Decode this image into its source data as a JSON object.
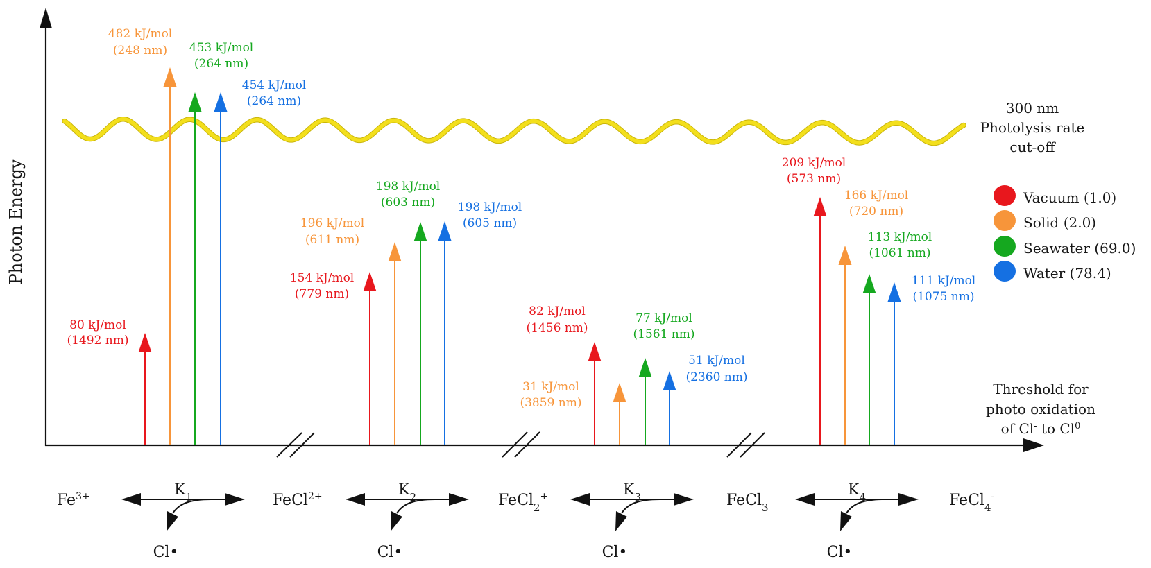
{
  "figure": {
    "y_axis_label": "Photon Energy",
    "x_axis_label": {
      "line1": "Threshold for",
      "line2": "photo oxidation",
      "line3": {
        "a": "of Cl",
        "a_sup": "-",
        "b": " to Cl",
        "b_sup": "0"
      }
    },
    "cutoff": {
      "line1": "300 nm",
      "line2": "Photolysis rate",
      "line3": "cut-off",
      "color": "#f3df1c",
      "outline_color": "#c9b50a"
    },
    "axis_color": "#111111"
  },
  "reactions": {
    "species": [
      {
        "base": "Fe",
        "sub": "",
        "sup": "3+"
      },
      {
        "base": "FeCl",
        "sub": "",
        "sup": "2+"
      },
      {
        "base": "FeCl",
        "sub": "2",
        "sup": "+"
      },
      {
        "base": "FeCl",
        "sub": "3",
        "sup": ""
      },
      {
        "base": "FeCl",
        "sub": "4",
        "sup": "-"
      }
    ],
    "constants": [
      {
        "base": "K",
        "sub": "1"
      },
      {
        "base": "K",
        "sub": "2"
      },
      {
        "base": "K",
        "sub": "3"
      },
      {
        "base": "K",
        "sub": "4"
      }
    ],
    "byproduct": "Cl•"
  },
  "chart_data": {
    "type": "bar",
    "title": "",
    "xlabel": "Threshold for photo oxidation of Cl- to Cl0",
    "ylabel": "Photon Energy",
    "schematic": true,
    "grid": false,
    "ticks": "none",
    "categories": [
      "K1: Fe3+ ⇌ FeCl2+",
      "K2: FeCl2+ ⇌ FeCl2+",
      "K3: FeCl2+ ⇌ FeCl3",
      "K4: FeCl3 ⇌ FeCl4-"
    ],
    "energy_unit": "kJ/mol",
    "wavelength_unit": "nm",
    "legend": {
      "position": "right"
    },
    "series": [
      {
        "name": "Vacuum (1.0)",
        "key": "vacuum",
        "dielectric_constant": 1.0,
        "color": "#e8171d",
        "values": [
          80,
          154,
          82,
          209
        ],
        "wavelengths_nm": [
          1492,
          779,
          1456,
          573
        ],
        "energy_labels": [
          "80 kJ/mol",
          "154 kJ/mol",
          "82 kJ/mol",
          "209 kJ/mol"
        ],
        "wavelength_labels": [
          "(1492 nm)",
          "(779 nm)",
          "(1456 nm)",
          "(573 nm)"
        ]
      },
      {
        "name": "Solid (2.0)",
        "key": "solid",
        "dielectric_constant": 2.0,
        "color": "#f7953a",
        "values": [
          482,
          196,
          31,
          166
        ],
        "wavelengths_nm": [
          248,
          611,
          3859,
          720
        ],
        "energy_labels": [
          "482 kJ/mol",
          "196 kJ/mol",
          "31 kJ/mol",
          "166 kJ/mol"
        ],
        "wavelength_labels": [
          "(248 nm)",
          "(611 nm)",
          "(3859 nm)",
          "(720 nm)"
        ]
      },
      {
        "name": "Seawater (69.0)",
        "key": "seawater",
        "dielectric_constant": 69.0,
        "color": "#15a81f",
        "values": [
          453,
          198,
          77,
          113
        ],
        "wavelengths_nm": [
          264,
          603,
          1561,
          1061
        ],
        "energy_labels": [
          "453 kJ/mol",
          "198 kJ/mol",
          "77 kJ/mol",
          "113 kJ/mol"
        ],
        "wavelength_labels": [
          "(264 nm)",
          "(603 nm)",
          "(1561 nm)",
          "(1061 nm)"
        ]
      },
      {
        "name": "Water (78.4)",
        "key": "water",
        "dielectric_constant": 78.4,
        "color": "#1570e2",
        "values": [
          454,
          198,
          51,
          111
        ],
        "wavelengths_nm": [
          264,
          605,
          2360,
          1075
        ],
        "energy_labels": [
          "454 kJ/mol",
          "198 kJ/mol",
          "51 kJ/mol",
          "111 kJ/mol"
        ],
        "wavelength_labels": [
          "(264 nm)",
          "(605 nm)",
          "(2360 nm)",
          "(1075 nm)"
        ]
      }
    ],
    "annotations": [
      {
        "type": "wavy-line",
        "text": "300 nm Photolysis rate cut-off",
        "wavelength_nm": 300
      }
    ]
  }
}
